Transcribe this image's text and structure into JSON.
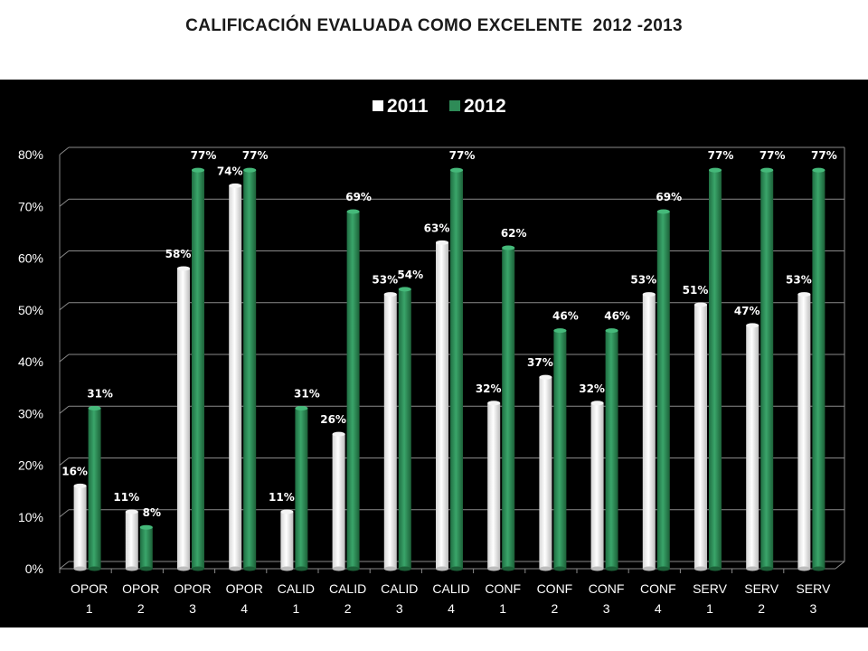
{
  "page": {
    "title": "CALIFICACIÓN EVALUADA COMO EXCELENTE  2012 -2013"
  },
  "colors": {
    "background": "#000000",
    "series_2011": "#ffffff",
    "series_2012": "#2e8b57",
    "gridline": "#8a8a8a"
  },
  "chart_data": {
    "type": "bar",
    "title": "",
    "xlabel": "",
    "ylabel": "",
    "ylim": [
      0,
      80
    ],
    "yticks": [
      "0%",
      "10%",
      "20%",
      "30%",
      "40%",
      "50%",
      "60%",
      "70%",
      "80%"
    ],
    "grid": true,
    "legend_position": "top-center",
    "categories": [
      [
        "OPOR",
        "1"
      ],
      [
        "OPOR",
        "2"
      ],
      [
        "OPOR",
        "3"
      ],
      [
        "OPOR",
        "4"
      ],
      [
        "CALID",
        "1"
      ],
      [
        "CALID",
        "2"
      ],
      [
        "CALID",
        "3"
      ],
      [
        "CALID",
        "4"
      ],
      [
        "CONF",
        "1"
      ],
      [
        "CONF",
        "2"
      ],
      [
        "CONF",
        "3"
      ],
      [
        "CONF",
        "4"
      ],
      [
        "SERV",
        "1"
      ],
      [
        "SERV",
        "2"
      ],
      [
        "SERV",
        "3"
      ]
    ],
    "series": [
      {
        "name": "2011",
        "color": "#ffffff",
        "values": [
          16,
          11,
          58,
          74,
          11,
          26,
          53,
          63,
          32,
          37,
          32,
          53,
          51,
          47,
          53
        ],
        "labels": [
          "16%",
          "11%",
          "58%",
          "74%",
          "11%",
          "26%",
          "53%",
          "63%",
          "32%",
          "37%",
          "32%",
          "53%",
          "51%",
          "47%",
          "53%"
        ]
      },
      {
        "name": "2012",
        "color": "#2e8b57",
        "values": [
          31,
          8,
          77,
          77,
          31,
          69,
          54,
          77,
          62,
          46,
          46,
          69,
          77,
          77,
          77
        ],
        "labels": [
          "31%",
          "8%",
          "77%",
          "77%",
          "31%",
          "69%",
          "54%",
          "77%",
          "62%",
          "46%",
          "46%",
          "69%",
          "77%",
          "77%",
          "77%"
        ]
      }
    ]
  }
}
